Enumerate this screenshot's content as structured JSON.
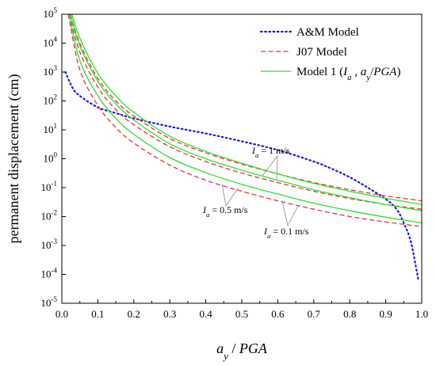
{
  "chart_data": {
    "type": "line",
    "title": "",
    "xlabel": {
      "parts": [
        {
          "t": "a",
          "i": true
        },
        {
          "t": "y",
          "i": true,
          "sub": true
        },
        {
          "t": " / ",
          "i": false
        },
        {
          "t": "PGA",
          "i": true
        }
      ]
    },
    "ylabel": "permanent displacement (cm)",
    "xlim": [
      0.0,
      1.0
    ],
    "ylim": [
      1e-05,
      100000.0
    ],
    "yscale": "log",
    "x_ticks": [
      "0.0",
      "0.1",
      "0.2",
      "0.3",
      "0.4",
      "0.5",
      "0.6",
      "0.7",
      "0.8",
      "0.9",
      "1.0"
    ],
    "y_ticks": [
      {
        "base": "10",
        "exp": "5"
      },
      {
        "base": "10",
        "exp": "4"
      },
      {
        "base": "10",
        "exp": "3"
      },
      {
        "base": "10",
        "exp": "2"
      },
      {
        "base": "10",
        "exp": "1"
      },
      {
        "base": "10",
        "exp": "0"
      },
      {
        "base": "10",
        "exp": "-1"
      },
      {
        "base": "10",
        "exp": "-2"
      },
      {
        "base": "10",
        "exp": "-3"
      },
      {
        "base": "10",
        "exp": "-4"
      },
      {
        "base": "10",
        "exp": "-5"
      }
    ],
    "grid": false,
    "legend_position": "top-right",
    "legend": [
      {
        "label": "A&M Model",
        "color": "#1a1adb",
        "dash": "dotted"
      },
      {
        "label": "J07 Model",
        "color": "#e8333a",
        "dash": "dashed"
      },
      {
        "label_parts": [
          {
            "t": "Model 1 (",
            "i": false
          },
          {
            "t": "I",
            "i": true
          },
          {
            "t": "a",
            "i": true,
            "sub": true
          },
          {
            "t": " , ",
            "i": false
          },
          {
            "t": "a",
            "i": true
          },
          {
            "t": "y",
            "i": true,
            "sub": true
          },
          {
            "t": "/",
            "i": false
          },
          {
            "t": "PGA",
            "i": true
          },
          {
            "t": ")",
            "i": false
          }
        ],
        "color": "#33dd33",
        "dash": "solid"
      }
    ],
    "annotations": [
      {
        "parts": [
          {
            "t": "I",
            "i": true
          },
          {
            "t": "a",
            "i": true,
            "sub": true
          },
          {
            "t": " = 1 m/s",
            "i": false
          }
        ]
      },
      {
        "parts": [
          {
            "t": "I",
            "i": true
          },
          {
            "t": "a",
            "i": true,
            "sub": true
          },
          {
            "t": " = 0.5 m/s",
            "i": false
          }
        ]
      },
      {
        "parts": [
          {
            "t": "I",
            "i": true
          },
          {
            "t": "a",
            "i": true,
            "sub": true
          },
          {
            "t": " = 0.1 m/s",
            "i": false
          }
        ]
      }
    ],
    "series": [
      {
        "model": "A&M Model",
        "color": "#1a1adb",
        "dash": "dotted",
        "x": [
          0.01,
          0.03,
          0.05,
          0.1,
          0.15,
          0.2,
          0.3,
          0.4,
          0.5,
          0.6,
          0.7,
          0.75,
          0.8,
          0.85,
          0.9,
          0.93,
          0.95,
          0.97,
          0.99
        ],
        "y": [
          1000,
          280,
          150,
          60,
          38,
          25,
          13,
          7.5,
          4,
          2,
          0.8,
          0.45,
          0.23,
          0.1,
          0.04,
          0.018,
          0.006,
          0.0013,
          7e-05
        ]
      },
      {
        "model": "J07 Model",
        "ia": "1 m/s",
        "color": "#e8333a",
        "dash": "dashed",
        "x": [
          0.024,
          0.05,
          0.1,
          0.15,
          0.2,
          0.3,
          0.4,
          0.5,
          0.6,
          0.7,
          0.8,
          0.9,
          1.0
        ],
        "y": [
          100000,
          10000,
          600,
          100,
          30,
          5,
          1.6,
          0.65,
          0.3,
          0.15,
          0.085,
          0.052,
          0.035
        ]
      },
      {
        "model": "J07 Model",
        "ia": "0.5 m/s",
        "color": "#e8333a",
        "dash": "dashed",
        "x": [
          0.021,
          0.05,
          0.1,
          0.15,
          0.2,
          0.3,
          0.4,
          0.5,
          0.6,
          0.7,
          0.8,
          0.9,
          1.0
        ],
        "y": [
          100000,
          5000,
          300,
          50,
          15,
          2.6,
          0.8,
          0.32,
          0.15,
          0.075,
          0.042,
          0.026,
          0.018
        ]
      },
      {
        "model": "J07 Model",
        "ia": "0.1 m/s",
        "color": "#e8333a",
        "dash": "dashed",
        "x": [
          0.018,
          0.05,
          0.1,
          0.15,
          0.2,
          0.3,
          0.4,
          0.5,
          0.6,
          0.7,
          0.8,
          0.9,
          1.0
        ],
        "y": [
          100000,
          1200,
          70,
          12,
          3.5,
          0.6,
          0.18,
          0.075,
          0.035,
          0.018,
          0.01,
          0.0065,
          0.0045
        ]
      },
      {
        "model": "Model 1",
        "ia": "1 m/s",
        "color": "#33dd33",
        "dash": "solid",
        "x": [
          0.028,
          0.05,
          0.1,
          0.15,
          0.2,
          0.3,
          0.4,
          0.5,
          0.6,
          0.7,
          0.8,
          0.9,
          1.0
        ],
        "y": [
          100000,
          15000,
          900,
          150,
          40,
          6,
          1.8,
          0.7,
          0.3,
          0.14,
          0.075,
          0.043,
          0.026
        ]
      },
      {
        "model": "Model 1",
        "ia": "0.5 m/s",
        "color": "#33dd33",
        "dash": "solid",
        "x": [
          0.024,
          0.05,
          0.1,
          0.15,
          0.2,
          0.3,
          0.4,
          0.5,
          0.6,
          0.7,
          0.8,
          0.9,
          1.0
        ],
        "y": [
          100000,
          8000,
          480,
          80,
          22,
          3.3,
          1.0,
          0.4,
          0.18,
          0.085,
          0.045,
          0.026,
          0.016
        ]
      },
      {
        "model": "Model 1",
        "ia": "0.1 m/s",
        "color": "#33dd33",
        "dash": "solid",
        "x": [
          0.02,
          0.05,
          0.1,
          0.15,
          0.2,
          0.3,
          0.4,
          0.5,
          0.6,
          0.7,
          0.8,
          0.9,
          1.0
        ],
        "y": [
          100000,
          2500,
          150,
          25,
          7,
          1.1,
          0.33,
          0.13,
          0.06,
          0.029,
          0.016,
          0.0095,
          0.006
        ]
      }
    ]
  }
}
